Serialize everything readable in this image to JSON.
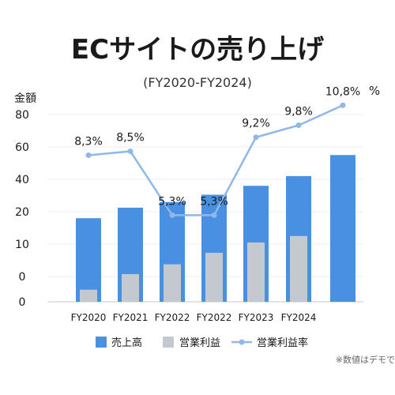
{
  "chart_data": {
    "type": "bar",
    "title": "ECサイトの売り上げ",
    "subtitle": "(FY2020-FY2024)",
    "ylabel": "金額",
    "y2label": "%",
    "yticks": [
      "0",
      "0",
      "10",
      "20",
      "40",
      "60",
      "80"
    ],
    "categories": [
      "FY2020",
      "FY2021",
      "FY2022",
      "FY2022",
      "FY2023",
      "FY2024",
      ""
    ],
    "series": [
      {
        "name": "売上高",
        "type": "bar",
        "color": "#4a90e2",
        "values": [
          18,
          22.5,
          26,
          30.5,
          36,
          42,
          55
        ]
      },
      {
        "name": "営業利益",
        "type": "bar",
        "color": "#c3c9cf",
        "values": [
          2.1,
          4.8,
          6.5,
          8.5,
          10.5,
          12.5,
          null
        ]
      },
      {
        "name": "営業利益率",
        "type": "line",
        "color": "#8fb8e8",
        "values": [
          8.3,
          8.5,
          5.3,
          5.3,
          9.2,
          9.8,
          10.8
        ],
        "labels": [
          "8,3%",
          "8,5%",
          "5,3%",
          "5,3%",
          "9,2%",
          "9,8%",
          "10,8%"
        ]
      }
    ],
    "legend": [
      "売上高",
      "営業利益",
      "営業利益率"
    ],
    "legend_position": "bottom",
    "grid": true,
    "note": "※数値はデモで"
  }
}
